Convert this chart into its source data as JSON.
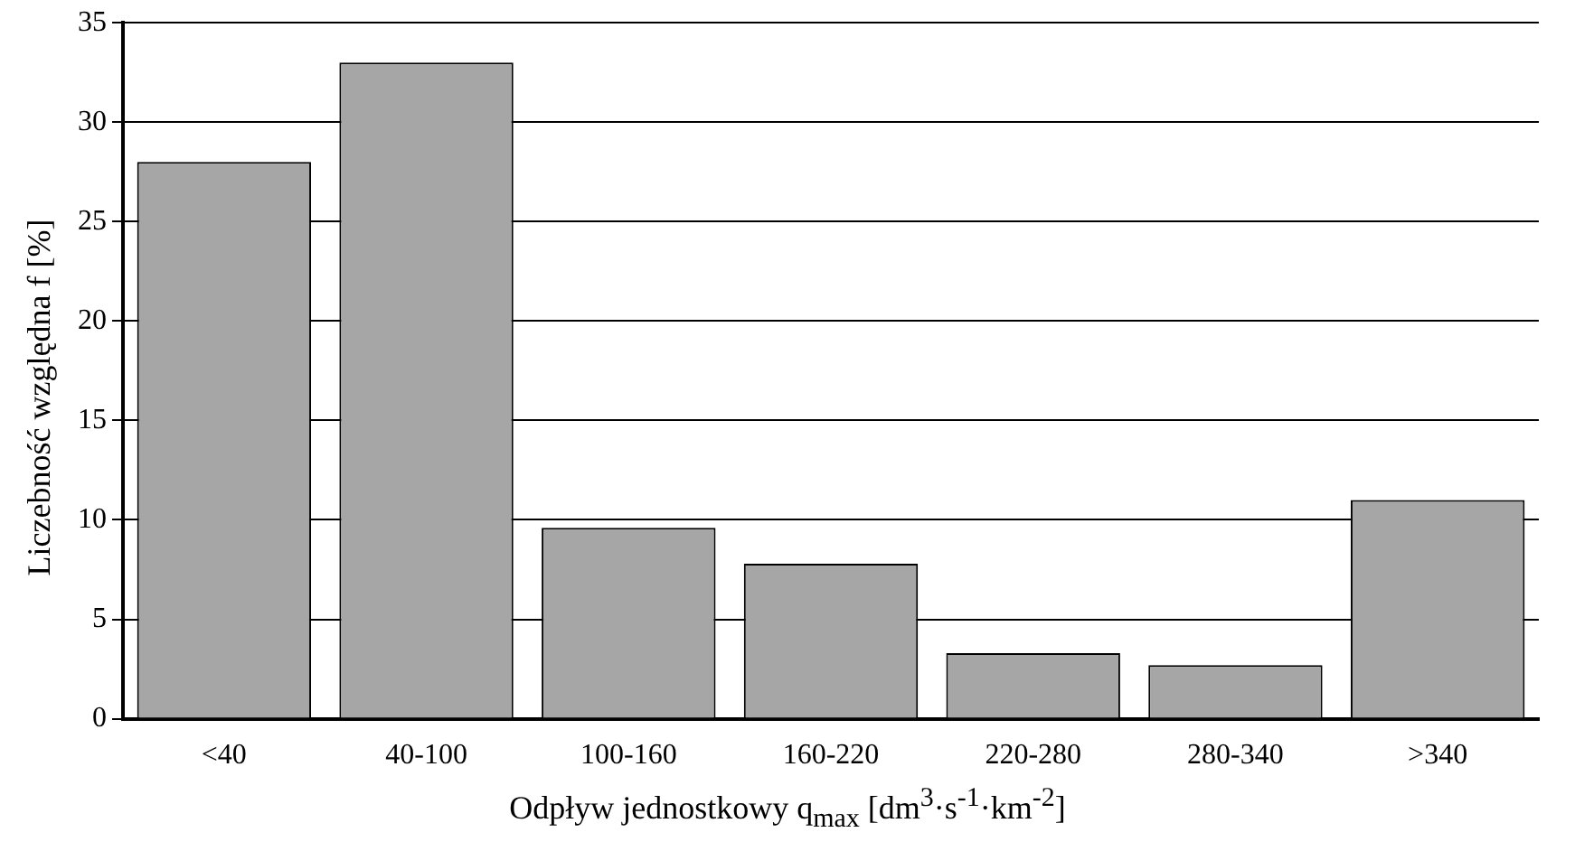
{
  "chart_data": {
    "type": "bar",
    "xlabel": "Odpływ jednostkowy q$_{max}$ [dm$^{3}$·s$^{-1}$·km$^{-2}$]",
    "ylabel": "Liczebność względna f [%]",
    "categories": [
      "<40",
      "40-100",
      "100-160",
      "160-220",
      "220-280",
      "280-340",
      ">340"
    ],
    "values": [
      28,
      33,
      9.6,
      7.8,
      3.3,
      2.7,
      11
    ],
    "color": "#a6a6a6",
    "ylim": [
      0,
      35
    ],
    "yticks": [
      0,
      5,
      10,
      15,
      20,
      25,
      30,
      35
    ],
    "grid": "y",
    "legend": false
  }
}
